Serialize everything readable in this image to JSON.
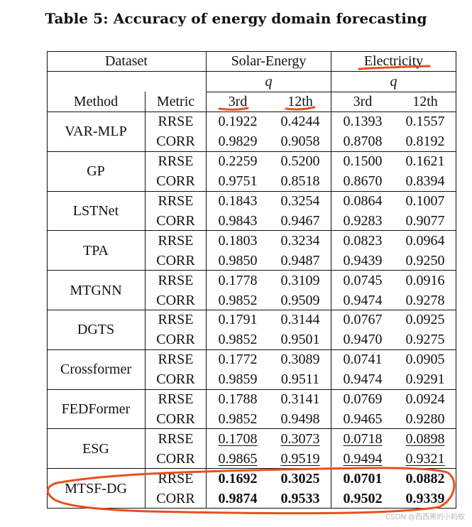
{
  "title": "Table 5: Accuracy of energy domain forecasting",
  "header": {
    "dataset": "Dataset",
    "solar": "Solar-Energy",
    "electricity": "Electricity",
    "q": "q",
    "method": "Method",
    "metric": "Metric",
    "h3": "3rd",
    "h12": "12th"
  },
  "rows": [
    {
      "method": "VAR-MLP",
      "rrse": [
        "0.1922",
        "0.4244",
        "0.1393",
        "0.1557"
      ],
      "corr": [
        "0.9829",
        "0.9058",
        "0.8708",
        "0.8192"
      ]
    },
    {
      "method": "GP",
      "rrse": [
        "0.2259",
        "0.5200",
        "0.1500",
        "0.1621"
      ],
      "corr": [
        "0.9751",
        "0.8518",
        "0.8670",
        "0.8394"
      ]
    },
    {
      "method": "LSTNet",
      "rrse": [
        "0.1843",
        "0.3254",
        "0.0864",
        "0.1007"
      ],
      "corr": [
        "0.9843",
        "0.9467",
        "0.9283",
        "0.9077"
      ]
    },
    {
      "method": "TPA",
      "rrse": [
        "0.1803",
        "0.3234",
        "0.0823",
        "0.0964"
      ],
      "corr": [
        "0.9850",
        "0.9487",
        "0.9439",
        "0.9250"
      ]
    },
    {
      "method": "MTGNN",
      "rrse": [
        "0.1778",
        "0.3109",
        "0.0745",
        "0.0916"
      ],
      "corr": [
        "0.9852",
        "0.9509",
        "0.9474",
        "0.9278"
      ]
    },
    {
      "method": "DGTS",
      "rrse": [
        "0.1791",
        "0.3144",
        "0.0767",
        "0.0925"
      ],
      "corr": [
        "0.9852",
        "0.9501",
        "0.9470",
        "0.9275"
      ]
    },
    {
      "method": "Crossformer",
      "rrse": [
        "0.1772",
        "0.3089",
        "0.0741",
        "0.0905"
      ],
      "corr": [
        "0.9859",
        "0.9511",
        "0.9474",
        "0.9291"
      ]
    },
    {
      "method": "FEDFormer",
      "rrse": [
        "0.1788",
        "0.3141",
        "0.0769",
        "0.0924"
      ],
      "corr": [
        "0.9852",
        "0.9498",
        "0.9465",
        "0.9280"
      ]
    },
    {
      "method": "ESG",
      "rrse": [
        "0.1708",
        "0.3073",
        "0.0718",
        "0.0898"
      ],
      "corr": [
        "0.9865",
        "0.9519",
        "0.9494",
        "0.9321"
      ]
    },
    {
      "method": "MTSF-DG",
      "rrse": [
        "0.1692",
        "0.3025",
        "0.0701",
        "0.0882"
      ],
      "corr": [
        "0.9874",
        "0.9533",
        "0.9502",
        "0.9339"
      ]
    }
  ],
  "metrics": {
    "rrse": "RRSE",
    "corr": "CORR"
  },
  "watermark": "CSDN @西西弗的小蚂蚁",
  "annotation_color": "#e8501e"
}
